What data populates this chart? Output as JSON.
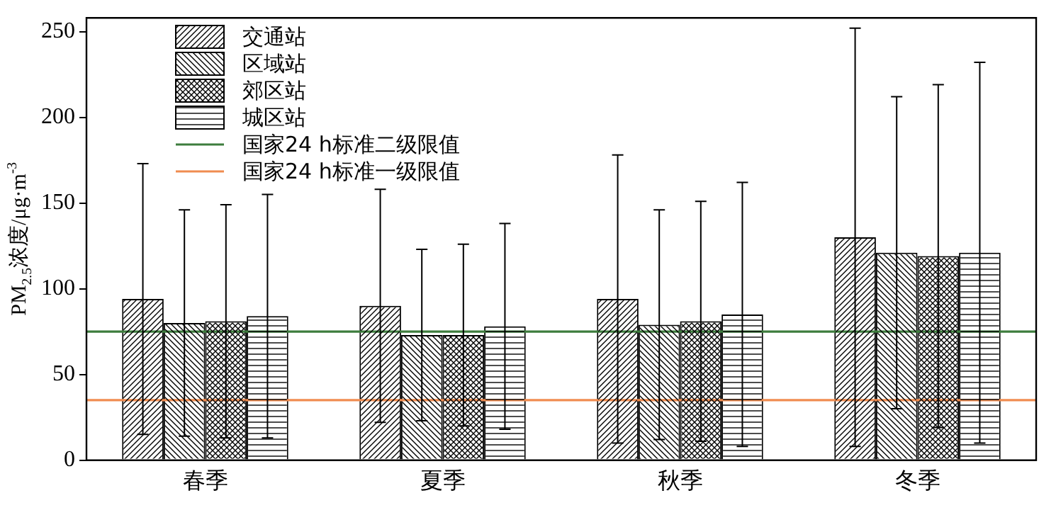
{
  "chart_data": {
    "type": "bar",
    "ylabel": "PM$_{2.5}$浓度/μg·m$^{-3}$",
    "categories": [
      "春季",
      "夏季",
      "秋季",
      "冬季"
    ],
    "series": [
      {
        "name": "交通站",
        "color": "#000000",
        "values": [
          94,
          90,
          94,
          130
        ],
        "errors": [
          79,
          68,
          84,
          122
        ]
      },
      {
        "name": "区域站",
        "color": "#000000",
        "values": [
          80,
          73,
          79,
          121
        ],
        "errors": [
          66,
          50,
          67,
          91
        ]
      },
      {
        "name": "郊区站",
        "color": "#000000",
        "values": [
          81,
          73,
          81,
          119
        ],
        "errors": [
          68,
          53,
          70,
          100
        ]
      },
      {
        "name": "城区站",
        "color": "#000000",
        "values": [
          84,
          78,
          85,
          121
        ],
        "errors": [
          71,
          60,
          77,
          111
        ]
      }
    ],
    "ref_lines": [
      {
        "axis": "y",
        "value": 75,
        "label": "国家24 h标准二级限值",
        "color": "#3d7d3d"
      },
      {
        "axis": "y",
        "value": 35,
        "label": "国家24 h标准一级限值",
        "color": "#f08c50"
      }
    ],
    "ylim": [
      0,
      258
    ],
    "yticks": [
      0,
      50,
      100,
      150,
      200,
      250
    ],
    "grid": false,
    "legend": "top left"
  }
}
